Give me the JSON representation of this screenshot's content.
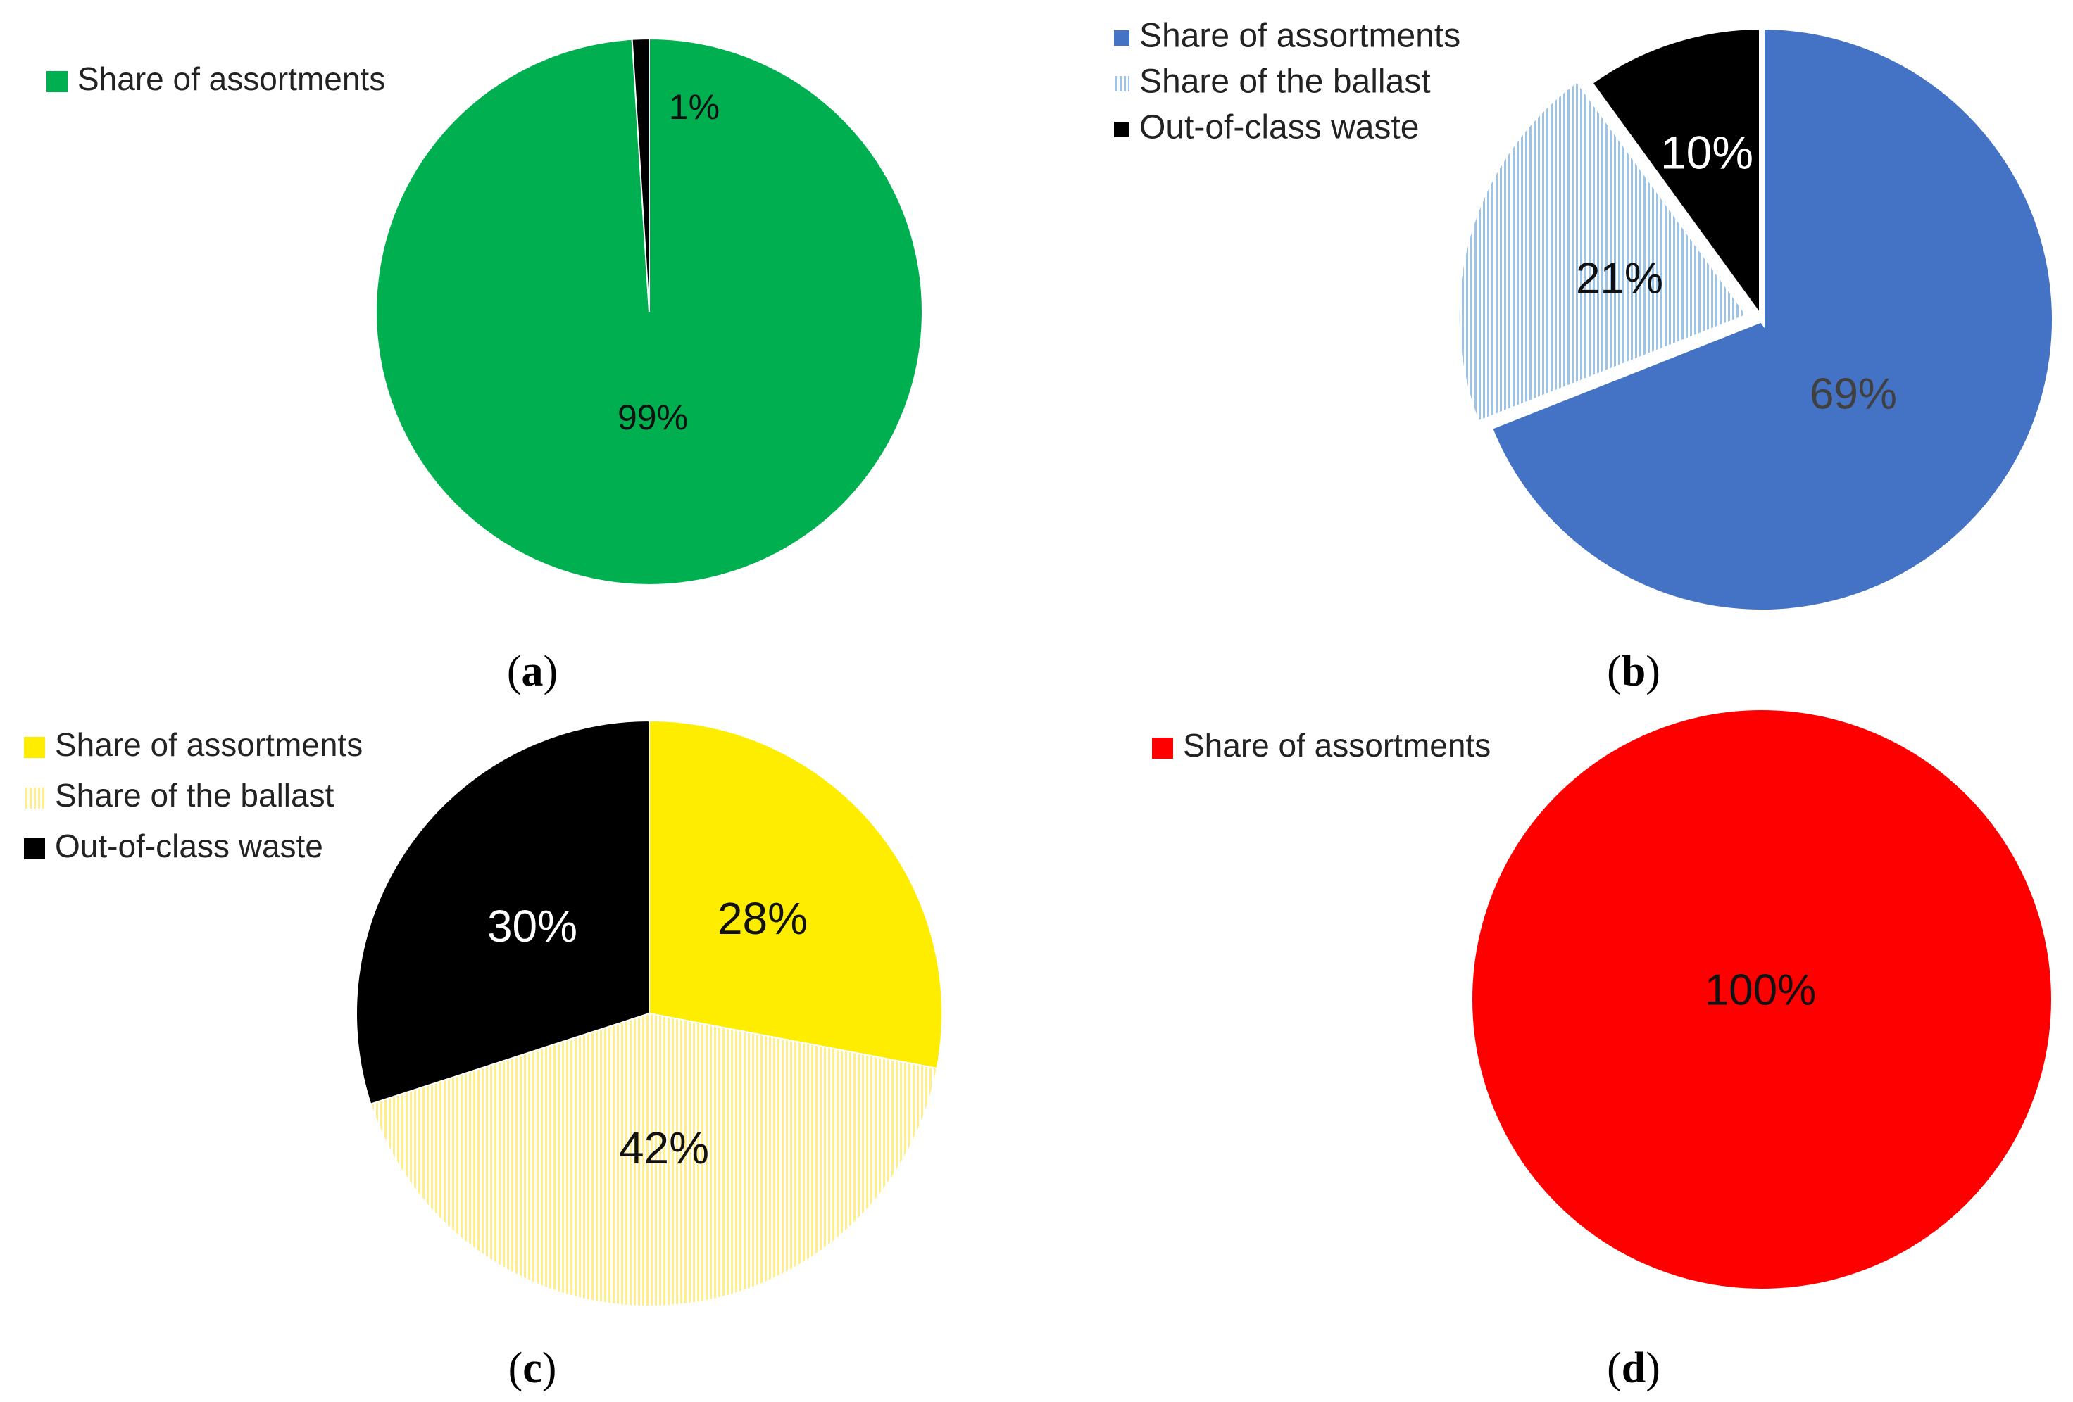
{
  "chart_data": [
    {
      "type": "pie",
      "panel_label": "(a)",
      "legend": [
        "Share of assortments"
      ],
      "legend_position": "top-left",
      "slices": [
        {
          "label": "",
          "value": 99,
          "data_label": "99%",
          "color": "#00B050",
          "pattern": "solid"
        },
        {
          "label": "",
          "value": 1,
          "data_label": "1%",
          "color": "#000000",
          "pattern": "solid"
        }
      ]
    },
    {
      "type": "pie",
      "panel_label": "(b)",
      "legend": [
        "Share of assortments",
        "Share of the ballast",
        "Out-of-class waste"
      ],
      "legend_position": "top-left",
      "slices": [
        {
          "label": "Share of assortments",
          "value": 69,
          "data_label": "69%",
          "color": "#4472C4",
          "pattern": "solid"
        },
        {
          "label": "Share of the ballast",
          "value": 21,
          "data_label": "21%",
          "color": "#9DC3E6",
          "pattern": "vertical-lines"
        },
        {
          "label": "Out-of-class waste",
          "value": 10,
          "data_label": "10%",
          "color": "#000000",
          "pattern": "solid"
        }
      ]
    },
    {
      "type": "pie",
      "panel_label": "(c)",
      "legend": [
        "Share of assortments",
        "Share of the ballast",
        "Out-of-class waste"
      ],
      "legend_position": "top-left",
      "slices": [
        {
          "label": "Share of assortments",
          "value": 28,
          "data_label": "28%",
          "color": "#FFED00",
          "pattern": "solid"
        },
        {
          "label": "Share of the ballast",
          "value": 42,
          "data_label": "42%",
          "color": "#FFF2A0",
          "pattern": "vertical-lines"
        },
        {
          "label": "Out-of-class waste",
          "value": 30,
          "data_label": "30%",
          "color": "#000000",
          "pattern": "solid"
        }
      ]
    },
    {
      "type": "pie",
      "panel_label": "(d)",
      "legend": [
        "Share of assortments"
      ],
      "legend_position": "top-left",
      "slices": [
        {
          "label": "Share of assortments",
          "value": 100,
          "data_label": "100%",
          "color": "#FF0000",
          "pattern": "solid"
        }
      ]
    }
  ]
}
